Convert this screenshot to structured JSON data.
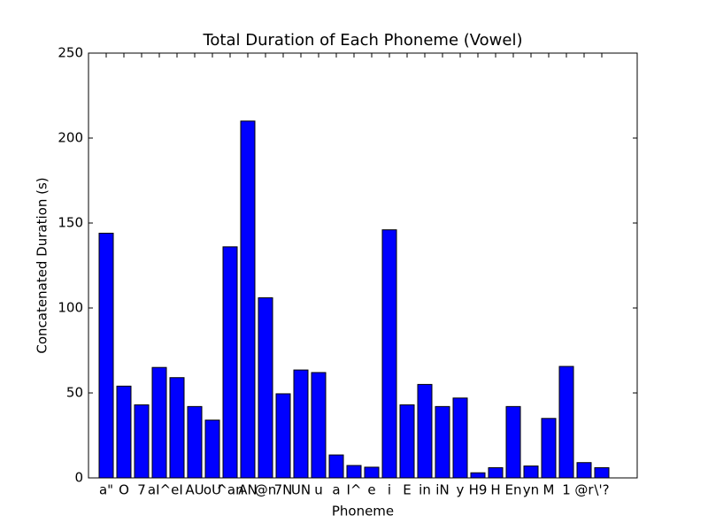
{
  "chart_data": {
    "type": "bar",
    "title": "Total Duration of Each Phoneme (Vowel)",
    "x_label": "Phoneme",
    "y_label": "Concatenated Duration (s)",
    "categories": [
      "a\"",
      "O",
      "7",
      "aI^",
      "eI",
      "AU",
      "oU",
      "^an",
      "AN",
      "@n",
      "7N",
      "UN",
      "u",
      "a",
      "I^",
      "e",
      "i",
      "E",
      "in",
      "iN",
      "y",
      "H9",
      "H",
      "En",
      "yn",
      "M",
      "1",
      "@r",
      "\\'?"
    ],
    "values": [
      144,
      54,
      43,
      65,
      59,
      42,
      34,
      136,
      210,
      106,
      49.5,
      63.5,
      62,
      13.5,
      7.3,
      6.3,
      146,
      43,
      55,
      42,
      47,
      3,
      6,
      42,
      7,
      35,
      65.6,
      9,
      6
    ],
    "color": "#0000ff",
    "ylim": [
      0,
      250
    ],
    "yticks": [
      0,
      50,
      100,
      150,
      200,
      250
    ],
    "grid": false
  }
}
